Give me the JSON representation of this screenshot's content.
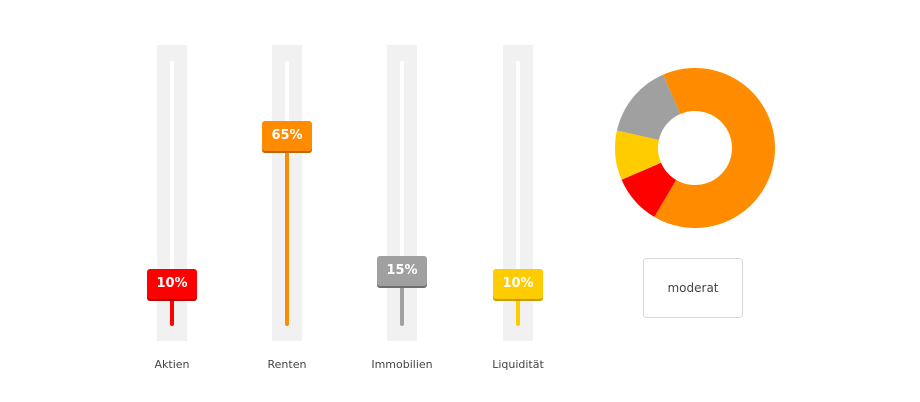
{
  "sliders": [
    {
      "label": "Aktien",
      "value": 10,
      "value_text": "10%",
      "color": "#ff0000",
      "shadow": "#b80000"
    },
    {
      "label": "Renten",
      "value": 65,
      "value_text": "65%",
      "color": "#ff8c00",
      "shadow": "#c06600"
    },
    {
      "label": "Immobilien",
      "value": 15,
      "value_text": "15%",
      "color": "#a0a0a0",
      "shadow": "#6e6e6e"
    },
    {
      "label": "Liquidität",
      "value": 10,
      "value_text": "10%",
      "color": "#ffcc00",
      "shadow": "#c69c00"
    }
  ],
  "chart_data": {
    "type": "pie",
    "variant": "donut",
    "slices": [
      {
        "label": "Renten",
        "value": 65,
        "color": "#ff8c00"
      },
      {
        "label": "Aktien",
        "value": 10,
        "color": "#ff0000"
      },
      {
        "label": "Liquidität",
        "value": 10,
        "color": "#ffcc00"
      },
      {
        "label": "Immobilien",
        "value": 15,
        "color": "#a0a0a0"
      }
    ]
  },
  "profile": {
    "label": "moderat"
  }
}
